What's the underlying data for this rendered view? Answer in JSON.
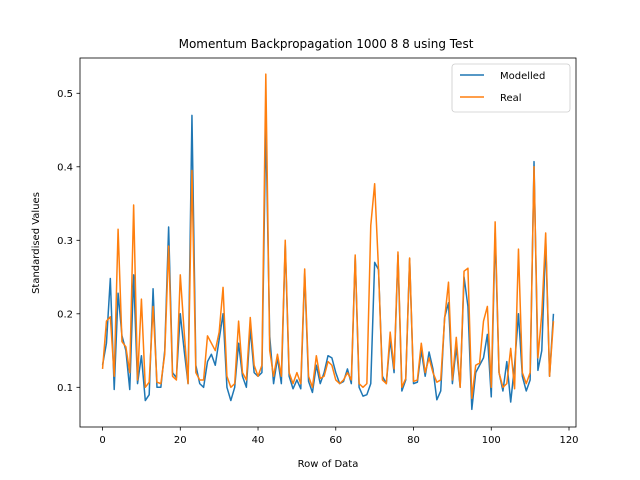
{
  "chart_data": {
    "type": "line",
    "title": "Momentum Backpropagation 1000 8 8 using Test",
    "xlabel": "Row of Data",
    "ylabel": "Standardised Values",
    "xlim": [
      -5.8,
      121.8
    ],
    "ylim": [
      0.046,
      0.548
    ],
    "xticks": [
      0,
      20,
      40,
      60,
      80,
      100,
      120
    ],
    "yticks": [
      0.1,
      0.2,
      0.3,
      0.4,
      0.5
    ],
    "xtick_labels": [
      "0",
      "20",
      "40",
      "60",
      "80",
      "100",
      "120"
    ],
    "ytick_labels": [
      "0.1",
      "0.2",
      "0.3",
      "0.4",
      "0.5"
    ],
    "legend_position": "top-right",
    "x_start": 0,
    "series": [
      {
        "name": "Modelled",
        "color": "#1f77b4",
        "values": [
          0.13,
          0.16,
          0.248,
          0.097,
          0.228,
          0.17,
          0.15,
          0.097,
          0.253,
          0.105,
          0.143,
          0.082,
          0.09,
          0.234,
          0.1,
          0.1,
          0.15,
          0.318,
          0.12,
          0.113,
          0.2,
          0.15,
          0.105,
          0.47,
          0.13,
          0.105,
          0.1,
          0.135,
          0.145,
          0.13,
          0.165,
          0.2,
          0.1,
          0.082,
          0.1,
          0.16,
          0.115,
          0.1,
          0.18,
          0.12,
          0.115,
          0.12,
          0.46,
          0.17,
          0.105,
          0.14,
          0.105,
          0.295,
          0.115,
          0.098,
          0.11,
          0.098,
          0.255,
          0.108,
          0.093,
          0.13,
          0.105,
          0.12,
          0.143,
          0.14,
          0.12,
          0.105,
          0.108,
          0.125,
          0.105,
          0.278,
          0.1,
          0.088,
          0.09,
          0.105,
          0.27,
          0.26,
          0.115,
          0.105,
          0.165,
          0.12,
          0.28,
          0.095,
          0.11,
          0.275,
          0.105,
          0.107,
          0.15,
          0.115,
          0.148,
          0.125,
          0.083,
          0.095,
          0.195,
          0.215,
          0.105,
          0.155,
          0.1,
          0.25,
          0.21,
          0.07,
          0.12,
          0.13,
          0.14,
          0.172,
          0.087,
          0.31,
          0.12,
          0.095,
          0.135,
          0.08,
          0.13,
          0.2,
          0.115,
          0.095,
          0.11,
          0.407,
          0.123,
          0.15,
          0.3,
          0.115,
          0.2
        ]
      },
      {
        "name": "Real",
        "color": "#ff7f0e",
        "values": [
          0.125,
          0.19,
          0.196,
          0.115,
          0.315,
          0.162,
          0.155,
          0.12,
          0.348,
          0.11,
          0.22,
          0.1,
          0.107,
          0.21,
          0.107,
          0.105,
          0.145,
          0.292,
          0.115,
          0.11,
          0.253,
          0.175,
          0.105,
          0.395,
          0.12,
          0.11,
          0.11,
          0.17,
          0.16,
          0.15,
          0.175,
          0.236,
          0.115,
          0.1,
          0.105,
          0.19,
          0.12,
          0.11,
          0.195,
          0.13,
          0.115,
          0.13,
          0.526,
          0.15,
          0.115,
          0.145,
          0.115,
          0.3,
          0.12,
          0.105,
          0.12,
          0.105,
          0.261,
          0.115,
          0.1,
          0.143,
          0.112,
          0.115,
          0.135,
          0.13,
          0.11,
          0.105,
          0.11,
          0.12,
          0.11,
          0.28,
          0.105,
          0.1,
          0.105,
          0.32,
          0.377,
          0.26,
          0.11,
          0.105,
          0.175,
          0.125,
          0.284,
          0.1,
          0.112,
          0.276,
          0.108,
          0.11,
          0.16,
          0.12,
          0.14,
          0.12,
          0.107,
          0.11,
          0.193,
          0.243,
          0.11,
          0.168,
          0.1,
          0.258,
          0.262,
          0.085,
          0.13,
          0.133,
          0.19,
          0.21,
          0.1,
          0.325,
          0.12,
          0.1,
          0.105,
          0.153,
          0.098,
          0.288,
          0.12,
          0.105,
          0.12,
          0.4,
          0.14,
          0.2,
          0.31,
          0.115,
          0.19
        ]
      }
    ]
  }
}
